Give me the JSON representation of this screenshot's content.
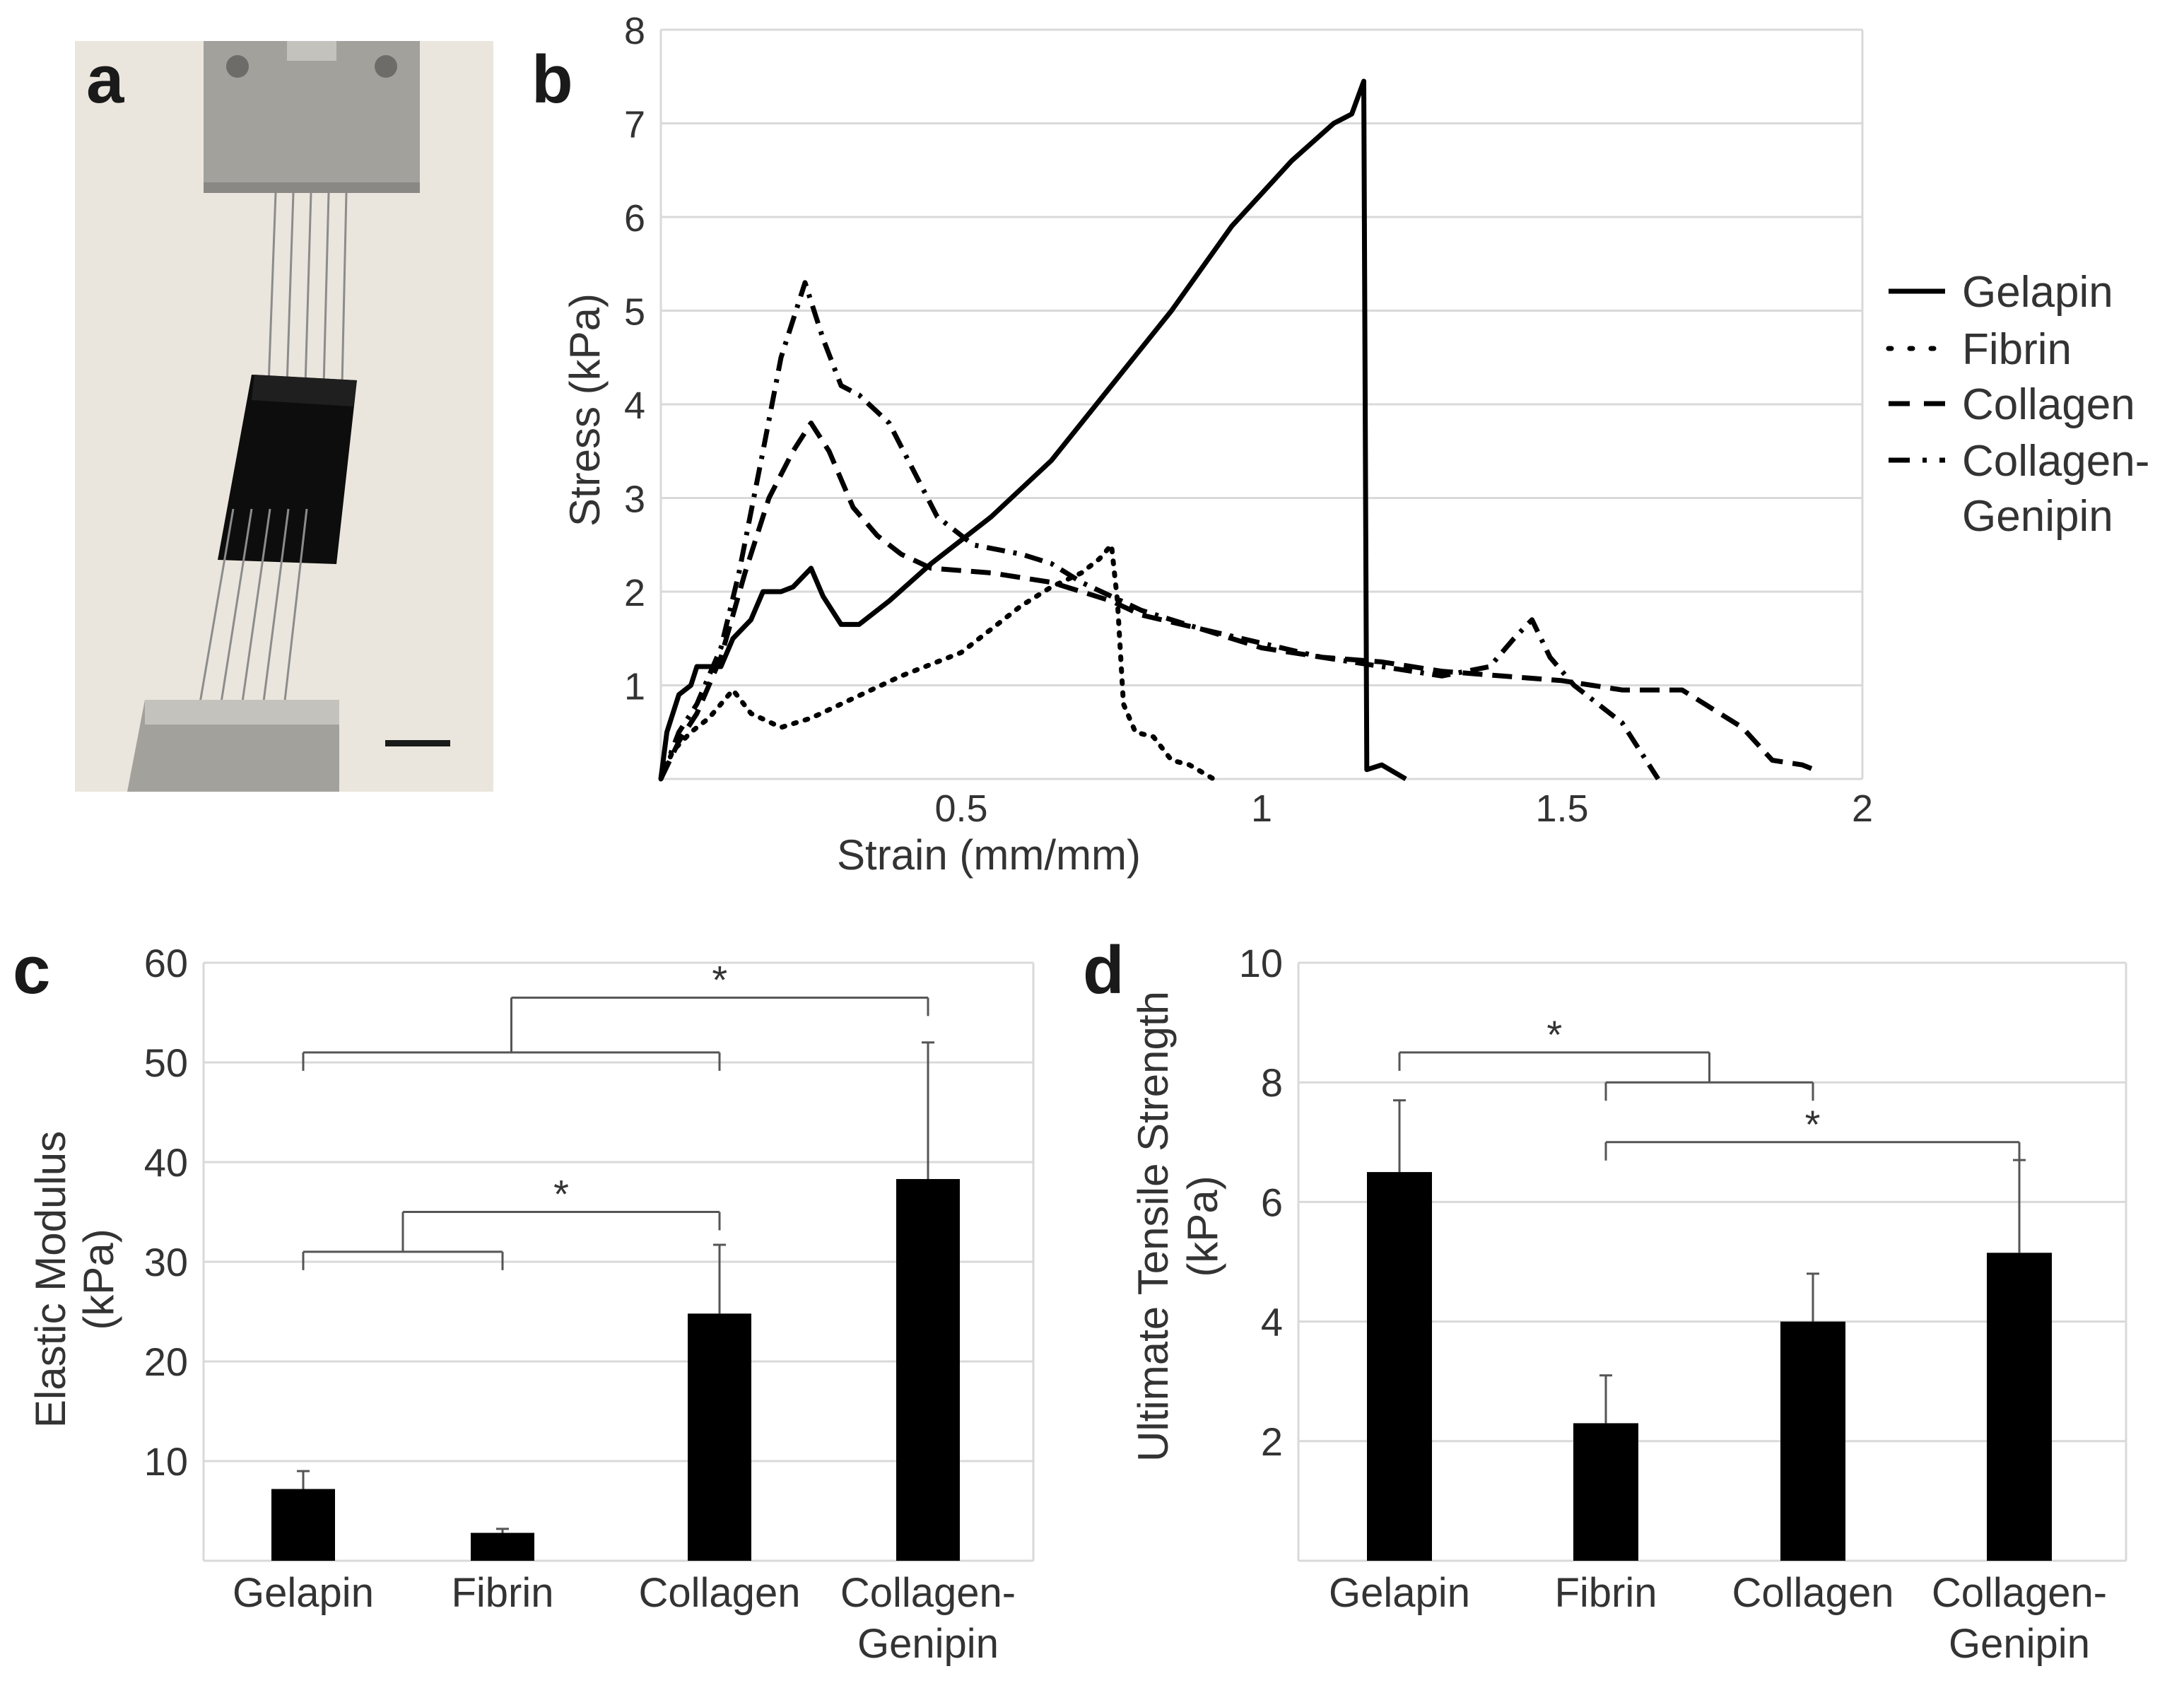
{
  "figure": {
    "panel_labels": [
      "a",
      "b",
      "c",
      "d"
    ],
    "photo": {
      "description_panel": "a",
      "colors": {
        "background": "#ebe6dd",
        "clamp": "#a3a19c",
        "scaffold": "#0d0d0d",
        "scale_bar": "#1a1a1a"
      }
    }
  },
  "chart_data": [
    {
      "panel": "b",
      "type": "line",
      "title": "",
      "xlabel": "Strain (mm/mm)",
      "ylabel": "Stress (kPa)",
      "xlim": [
        0,
        2
      ],
      "ylim": [
        0,
        8
      ],
      "x_ticks": [
        0.5,
        1,
        1.5,
        2
      ],
      "x_tick_labels": [
        "0.5",
        "1",
        "1.5",
        "2"
      ],
      "y_ticks": [
        1,
        2,
        3,
        4,
        5,
        6,
        7,
        8
      ],
      "y_tick_labels": [
        "1",
        "2",
        "3",
        "4",
        "5",
        "6",
        "7",
        "8"
      ],
      "grid": "horizontal",
      "legend_position": "right",
      "series": [
        {
          "name": "Gelapin",
          "style": "solid",
          "points": [
            [
              0,
              0
            ],
            [
              0.01,
              0.5
            ],
            [
              0.03,
              0.9
            ],
            [
              0.05,
              1.0
            ],
            [
              0.06,
              1.2
            ],
            [
              0.1,
              1.2
            ],
            [
              0.12,
              1.5
            ],
            [
              0.15,
              1.7
            ],
            [
              0.17,
              2.0
            ],
            [
              0.2,
              2.0
            ],
            [
              0.22,
              2.05
            ],
            [
              0.25,
              2.25
            ],
            [
              0.27,
              1.95
            ],
            [
              0.3,
              1.65
            ],
            [
              0.33,
              1.65
            ],
            [
              0.38,
              1.9
            ],
            [
              0.45,
              2.3
            ],
            [
              0.55,
              2.8
            ],
            [
              0.65,
              3.4
            ],
            [
              0.75,
              4.2
            ],
            [
              0.85,
              5.0
            ],
            [
              0.95,
              5.9
            ],
            [
              1.05,
              6.6
            ],
            [
              1.12,
              7.0
            ],
            [
              1.15,
              7.1
            ],
            [
              1.17,
              7.45
            ],
            [
              1.175,
              0.1
            ],
            [
              1.2,
              0.15
            ],
            [
              1.24,
              0.0
            ]
          ]
        },
        {
          "name": "Fibrin",
          "style": "dotted",
          "points": [
            [
              0,
              0
            ],
            [
              0.02,
              0.3
            ],
            [
              0.05,
              0.5
            ],
            [
              0.08,
              0.65
            ],
            [
              0.12,
              0.95
            ],
            [
              0.15,
              0.7
            ],
            [
              0.2,
              0.55
            ],
            [
              0.25,
              0.65
            ],
            [
              0.3,
              0.8
            ],
            [
              0.4,
              1.1
            ],
            [
              0.5,
              1.35
            ],
            [
              0.55,
              1.6
            ],
            [
              0.6,
              1.85
            ],
            [
              0.65,
              2.05
            ],
            [
              0.7,
              2.2
            ],
            [
              0.73,
              2.35
            ],
            [
              0.75,
              2.5
            ],
            [
              0.76,
              1.9
            ],
            [
              0.77,
              0.8
            ],
            [
              0.79,
              0.5
            ],
            [
              0.82,
              0.45
            ],
            [
              0.85,
              0.2
            ],
            [
              0.88,
              0.15
            ],
            [
              0.92,
              0.0
            ]
          ]
        },
        {
          "name": "Collagen",
          "style": "dashed",
          "points": [
            [
              0,
              0
            ],
            [
              0.03,
              0.4
            ],
            [
              0.06,
              0.7
            ],
            [
              0.1,
              1.3
            ],
            [
              0.14,
              2.2
            ],
            [
              0.18,
              3.0
            ],
            [
              0.22,
              3.5
            ],
            [
              0.25,
              3.8
            ],
            [
              0.28,
              3.5
            ],
            [
              0.32,
              2.9
            ],
            [
              0.36,
              2.6
            ],
            [
              0.4,
              2.4
            ],
            [
              0.45,
              2.25
            ],
            [
              0.55,
              2.2
            ],
            [
              0.65,
              2.1
            ],
            [
              0.7,
              2.0
            ],
            [
              0.75,
              1.9
            ],
            [
              0.8,
              1.75
            ],
            [
              0.9,
              1.6
            ],
            [
              1.0,
              1.4
            ],
            [
              1.1,
              1.3
            ],
            [
              1.2,
              1.25
            ],
            [
              1.3,
              1.15
            ],
            [
              1.4,
              1.1
            ],
            [
              1.5,
              1.05
            ],
            [
              1.55,
              1.0
            ],
            [
              1.6,
              0.95
            ],
            [
              1.7,
              0.95
            ],
            [
              1.75,
              0.75
            ],
            [
              1.8,
              0.55
            ],
            [
              1.85,
              0.2
            ],
            [
              1.9,
              0.15
            ],
            [
              1.92,
              0.1
            ]
          ]
        },
        {
          "name": "Collagen-Genipin",
          "style": "dashdot",
          "points": [
            [
              0,
              0
            ],
            [
              0.03,
              0.5
            ],
            [
              0.06,
              0.8
            ],
            [
              0.1,
              1.4
            ],
            [
              0.13,
              2.2
            ],
            [
              0.17,
              3.5
            ],
            [
              0.2,
              4.5
            ],
            [
              0.24,
              5.3
            ],
            [
              0.27,
              4.7
            ],
            [
              0.3,
              4.2
            ],
            [
              0.33,
              4.1
            ],
            [
              0.38,
              3.8
            ],
            [
              0.42,
              3.3
            ],
            [
              0.46,
              2.8
            ],
            [
              0.52,
              2.5
            ],
            [
              0.6,
              2.4
            ],
            [
              0.65,
              2.3
            ],
            [
              0.7,
              2.1
            ],
            [
              0.8,
              1.8
            ],
            [
              0.9,
              1.6
            ],
            [
              1.0,
              1.45
            ],
            [
              1.1,
              1.3
            ],
            [
              1.2,
              1.2
            ],
            [
              1.3,
              1.1
            ],
            [
              1.38,
              1.2
            ],
            [
              1.42,
              1.5
            ],
            [
              1.45,
              1.7
            ],
            [
              1.48,
              1.3
            ],
            [
              1.52,
              1.0
            ],
            [
              1.56,
              0.8
            ],
            [
              1.6,
              0.6
            ],
            [
              1.63,
              0.3
            ],
            [
              1.66,
              0.0
            ]
          ]
        }
      ]
    },
    {
      "panel": "c",
      "type": "bar",
      "title": "",
      "xlabel": "",
      "ylabel_lines": [
        "Elastic Modulus",
        "(kPa)"
      ],
      "ylim": [
        0,
        60
      ],
      "y_ticks": [
        10,
        20,
        30,
        40,
        50,
        60
      ],
      "y_tick_labels": [
        "10",
        "20",
        "30",
        "40",
        "50",
        "60"
      ],
      "grid": "horizontal",
      "categories": [
        "Gelapin",
        "Fibrin",
        "Collagen",
        "Collagen-Genipin"
      ],
      "category_label_lines": [
        [
          "Gelapin"
        ],
        [
          "Fibrin"
        ],
        [
          "Collagen"
        ],
        [
          "Collagen-",
          "Genipin"
        ]
      ],
      "values": [
        7.2,
        2.8,
        24.8,
        38.3
      ],
      "error_upper": [
        9.0,
        3.2,
        31.7,
        52.0
      ],
      "bar_color": "#000000",
      "significance": [
        {
          "label": "*",
          "left_group": [
            0,
            1
          ],
          "right_group": [
            2
          ],
          "bracket_level": 31,
          "top_level": 35
        },
        {
          "label": "*",
          "left_group": [
            0,
            1,
            2
          ],
          "right_group": [
            3
          ],
          "bracket_level": 51,
          "top_level": 56.5
        }
      ]
    },
    {
      "panel": "d",
      "type": "bar",
      "title": "",
      "xlabel": "",
      "ylabel_lines": [
        "Ultimate Tensile Strength",
        "(kPa)"
      ],
      "ylim": [
        0,
        10
      ],
      "y_ticks": [
        2,
        4,
        6,
        8,
        10
      ],
      "y_tick_labels": [
        "2",
        "4",
        "6",
        "8",
        "10"
      ],
      "grid": "horizontal",
      "categories": [
        "Gelapin",
        "Fibrin",
        "Collagen",
        "Collagen-Genipin"
      ],
      "category_label_lines": [
        [
          "Gelapin"
        ],
        [
          "Fibrin"
        ],
        [
          "Collagen"
        ],
        [
          "Collagen-",
          "Genipin"
        ]
      ],
      "values": [
        6.5,
        2.3,
        4.0,
        5.15
      ],
      "error_upper": [
        7.7,
        3.1,
        4.8,
        6.7
      ],
      "bar_color": "#000000",
      "significance": [
        {
          "label": "*",
          "left_group": [
            0
          ],
          "right_group": [
            1,
            2
          ],
          "bracket_level": 8.0,
          "top_level": 8.5
        },
        {
          "label": "*",
          "left_group": [
            1
          ],
          "right_group": [
            3
          ],
          "bracket_level": 7.0,
          "top_level": 7.0
        }
      ]
    }
  ]
}
